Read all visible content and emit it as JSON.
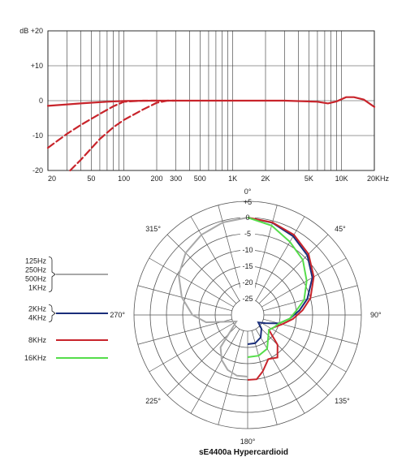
{
  "chart_data": [
    {
      "type": "line",
      "title": "",
      "xscale": "log",
      "xlim": [
        20,
        20000
      ],
      "ylim": [
        -20,
        20
      ],
      "x_ticks": [
        {
          "v": 20,
          "label": "20"
        },
        {
          "v": 50,
          "label": "50"
        },
        {
          "v": 100,
          "label": "100"
        },
        {
          "v": 200,
          "label": "200"
        },
        {
          "v": 300,
          "label": "300"
        },
        {
          "v": 500,
          "label": "500"
        },
        {
          "v": 1000,
          "label": "1K"
        },
        {
          "v": 2000,
          "label": "2K"
        },
        {
          "v": 5000,
          "label": "5K"
        },
        {
          "v": 10000,
          "label": "10K"
        },
        {
          "v": 20000,
          "label": "20KHz"
        }
      ],
      "y_ticks": [
        {
          "v": 20,
          "label": "dB +20"
        },
        {
          "v": 10,
          "label": "+10"
        },
        {
          "v": 0,
          "label": "0"
        },
        {
          "v": -10,
          "label": "-10"
        },
        {
          "v": -20,
          "label": "-20"
        }
      ],
      "grid": true,
      "series": [
        {
          "style": "solid",
          "color": "#c8242b",
          "points": [
            [
              20,
              -1.5
            ],
            [
              40,
              -0.8
            ],
            [
              70,
              -0.3
            ],
            [
              100,
              -0.1
            ],
            [
              200,
              0
            ],
            [
              1000,
              0
            ],
            [
              3000,
              0
            ],
            [
              6000,
              -0.3
            ],
            [
              7500,
              -0.8
            ],
            [
              9000,
              -0.2
            ],
            [
              11000,
              1.0
            ],
            [
              13000,
              1.0
            ],
            [
              16000,
              0.3
            ],
            [
              20000,
              -1.8
            ]
          ]
        },
        {
          "style": "dashed",
          "color": "#c8242b",
          "points": [
            [
              20,
              -13.5
            ],
            [
              30,
              -9.5
            ],
            [
              40,
              -7
            ],
            [
              60,
              -3.8
            ],
            [
              80,
              -1.6
            ],
            [
              100,
              -0.3
            ],
            [
              150,
              0
            ],
            [
              200,
              0
            ]
          ]
        },
        {
          "style": "dashed",
          "color": "#c8242b",
          "points": [
            [
              32,
              -20
            ],
            [
              40,
              -17
            ],
            [
              60,
              -11
            ],
            [
              80,
              -7.6
            ],
            [
              100,
              -5.5
            ],
            [
              150,
              -2.5
            ],
            [
              200,
              -0.6
            ],
            [
              250,
              0
            ],
            [
              300,
              0
            ]
          ]
        }
      ]
    },
    {
      "type": "polar",
      "title": "sE4400a  Hypercardioid",
      "r_ticks": [
        "+5",
        "0",
        "-5",
        "-10",
        "-15",
        "-20",
        "-25"
      ],
      "rlim": [
        -30,
        5
      ],
      "angle_labels": [
        {
          "deg": 0,
          "label": "0°"
        },
        {
          "deg": 45,
          "label": "45°"
        },
        {
          "deg": 90,
          "label": "90°"
        },
        {
          "deg": 135,
          "label": "135°"
        },
        {
          "deg": 180,
          "label": "180°"
        },
        {
          "deg": 225,
          "label": "225°"
        },
        {
          "deg": 270,
          "label": "270°"
        },
        {
          "deg": 315,
          "label": "315°"
        }
      ],
      "series": [
        {
          "name_lines": [
            "125Hz",
            "250Hz",
            "500Hz",
            "1KHz"
          ],
          "color": "#a8a8a8",
          "mirror": true,
          "points": [
            [
              0,
              0
            ],
            [
              15,
              -0.5
            ],
            [
              30,
              -1.5
            ],
            [
              45,
              -3
            ],
            [
              60,
              -5.5
            ],
            [
              75,
              -9
            ],
            [
              90,
              -13
            ],
            [
              100,
              -17
            ],
            [
              110,
              -24
            ],
            [
              120,
              -26
            ],
            [
              130,
              -24
            ],
            [
              140,
              -17
            ],
            [
              150,
              -14
            ],
            [
              160,
              -12
            ],
            [
              170,
              -11
            ],
            [
              180,
              -11
            ]
          ]
        },
        {
          "name_lines": [
            "2KHz",
            "4KHz"
          ],
          "color": "#1a2e7a",
          "mirror": false,
          "points": [
            [
              0,
              0
            ],
            [
              15,
              -0.6
            ],
            [
              30,
              -2
            ],
            [
              45,
              -4
            ],
            [
              60,
              -7
            ],
            [
              75,
              -11
            ],
            [
              85,
              -14
            ],
            [
              95,
              -17
            ],
            [
              105,
              -20
            ],
            [
              115,
              -24
            ],
            [
              125,
              -26
            ],
            [
              135,
              -24
            ],
            [
              150,
              -22
            ],
            [
              165,
              -21
            ],
            [
              180,
              -21
            ]
          ]
        },
        {
          "name_lines": [
            "8KHz"
          ],
          "color": "#c8242b",
          "mirror": false,
          "points": [
            [
              0,
              0
            ],
            [
              15,
              -0.5
            ],
            [
              30,
              -1.5
            ],
            [
              45,
              -3.5
            ],
            [
              60,
              -6.5
            ],
            [
              75,
              -10
            ],
            [
              85,
              -13
            ],
            [
              95,
              -16
            ],
            [
              105,
              -19
            ],
            [
              115,
              -21
            ],
            [
              125,
              -22
            ],
            [
              135,
              -17
            ],
            [
              145,
              -14
            ],
            [
              155,
              -15
            ],
            [
              165,
              -12
            ],
            [
              172,
              -10
            ],
            [
              180,
              -10
            ]
          ]
        },
        {
          "name_lines": [
            "16KHz"
          ],
          "color": "#55dd4a",
          "mirror": false,
          "points": [
            [
              0,
              0
            ],
            [
              15,
              -1.5
            ],
            [
              30,
              -4
            ],
            [
              45,
              -6
            ],
            [
              60,
              -9
            ],
            [
              75,
              -12
            ],
            [
              85,
              -15
            ],
            [
              95,
              -17
            ],
            [
              105,
              -20
            ],
            [
              115,
              -21
            ],
            [
              125,
              -22
            ],
            [
              135,
              -21
            ],
            [
              150,
              -18
            ],
            [
              165,
              -17
            ],
            [
              180,
              -17
            ]
          ]
        }
      ]
    }
  ]
}
